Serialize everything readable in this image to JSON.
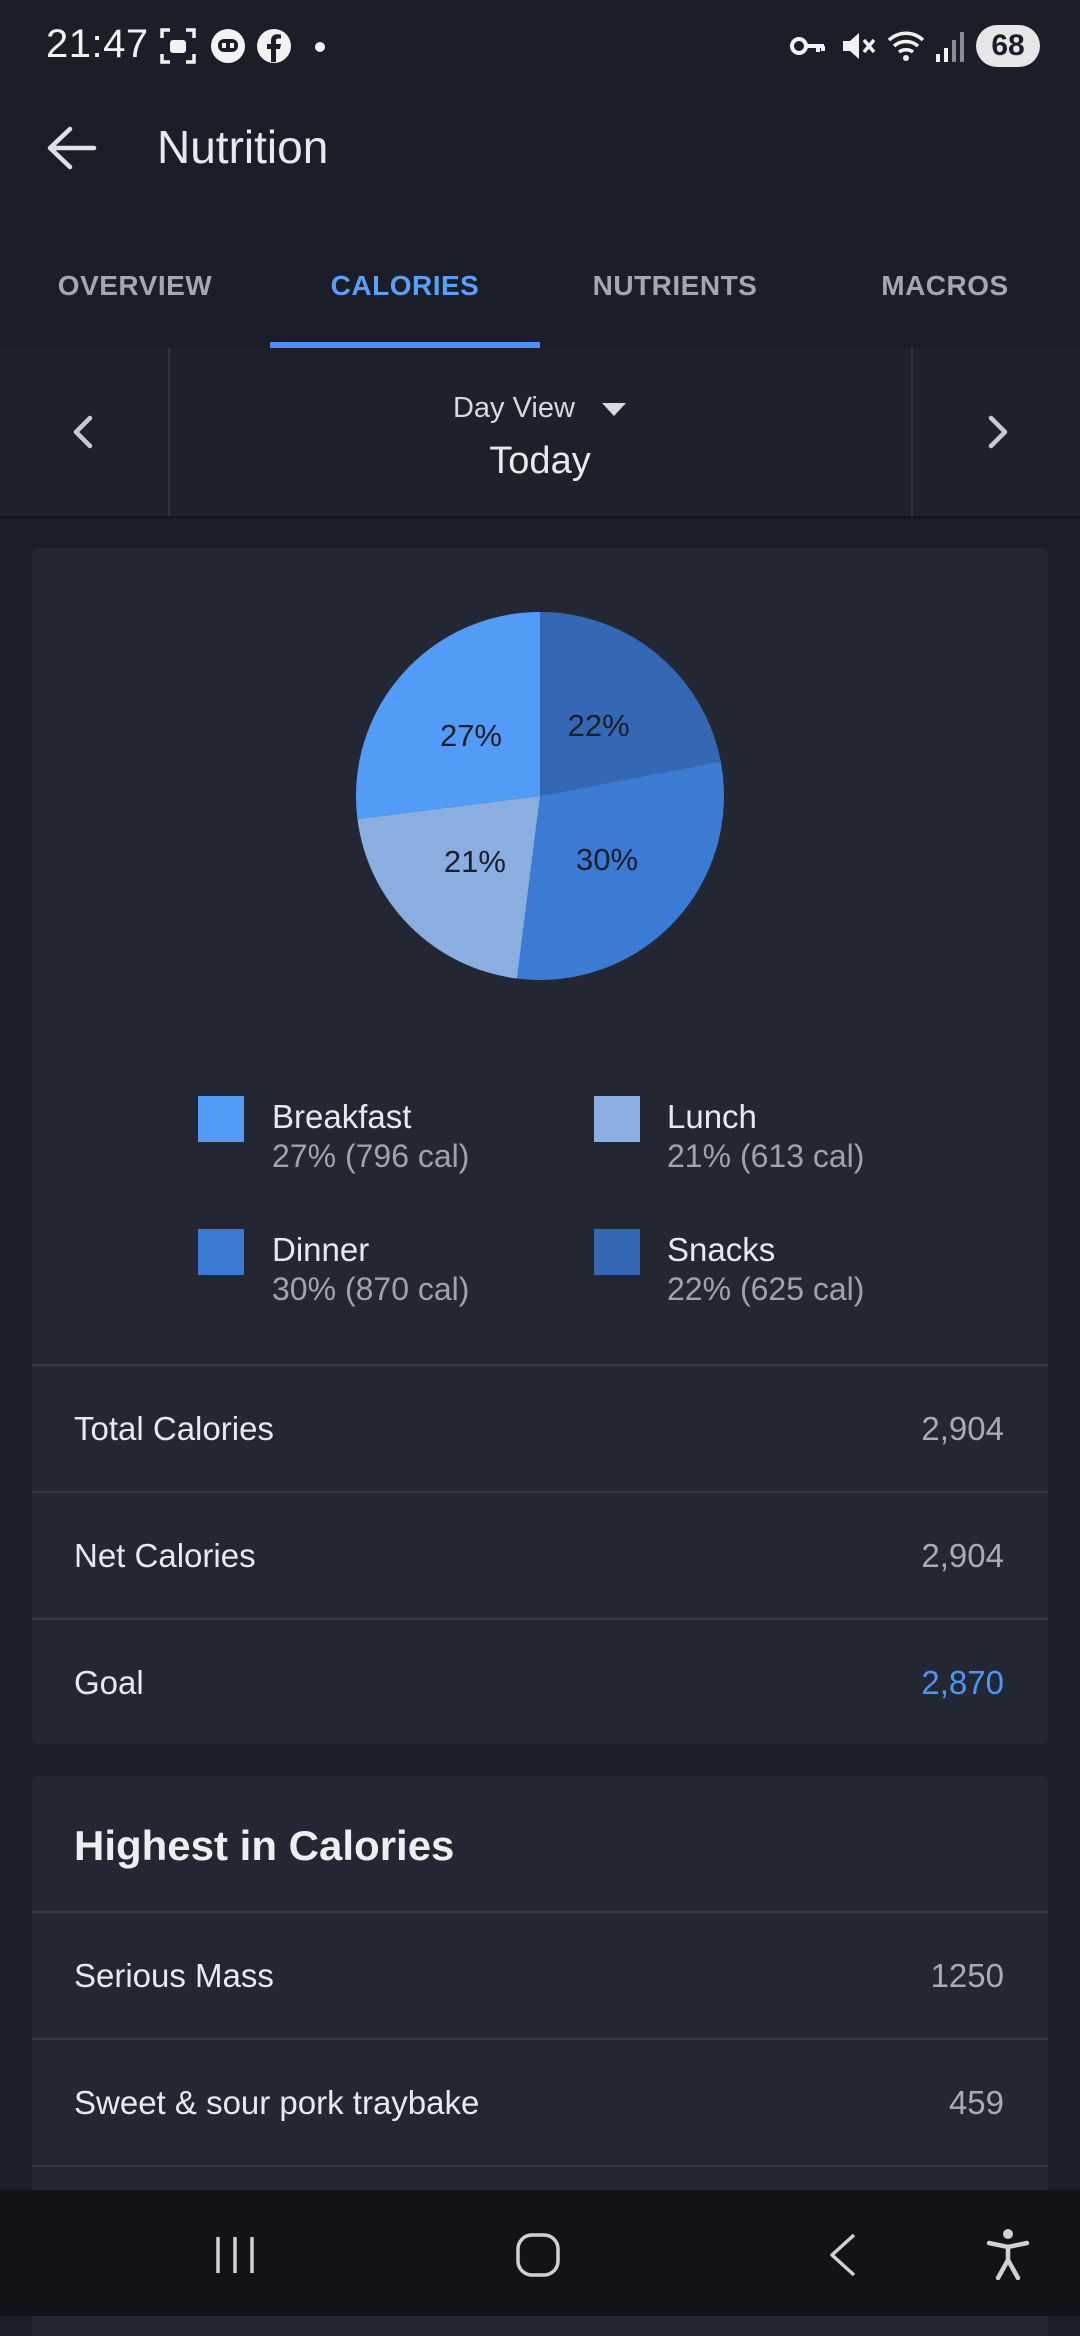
{
  "status_bar": {
    "time": "21:47",
    "battery": "68",
    "left_icons": [
      "screenshot-icon",
      "robot-icon",
      "facebook-icon",
      "dot-icon"
    ],
    "right_icons": [
      "key-icon",
      "mute-icon",
      "wifi-icon",
      "signal-icon"
    ]
  },
  "app_bar": {
    "title": "Nutrition"
  },
  "tabs": [
    {
      "label": "OVERVIEW",
      "active": false
    },
    {
      "label": "CALORIES",
      "active": true
    },
    {
      "label": "NUTRIENTS",
      "active": false
    },
    {
      "label": "MACROS",
      "active": false
    }
  ],
  "date_nav": {
    "view_label": "Day View",
    "date_label": "Today"
  },
  "chart_data": {
    "type": "pie",
    "slices": [
      {
        "name": "Snacks",
        "percent": 22,
        "label": "22%",
        "color": "#3468b4"
      },
      {
        "name": "Dinner",
        "percent": 30,
        "label": "30%",
        "color": "#3b7bd3"
      },
      {
        "name": "Lunch",
        "percent": 21,
        "label": "21%",
        "color": "#8aaee0"
      },
      {
        "name": "Breakfast",
        "percent": 27,
        "label": "27%",
        "color": "#529cf8"
      }
    ]
  },
  "legend": [
    {
      "name": "Breakfast",
      "value": "27% (796 cal)",
      "color": "#529cf8"
    },
    {
      "name": "Lunch",
      "value": "21% (613 cal)",
      "color": "#8aaee0"
    },
    {
      "name": "Dinner",
      "value": "30% (870 cal)",
      "color": "#3b7bd3"
    },
    {
      "name": "Snacks",
      "value": "22% (625 cal)",
      "color": "#3468b4"
    }
  ],
  "summary": [
    {
      "label": "Total Calories",
      "value": "2,904"
    },
    {
      "label": "Net Calories",
      "value": "2,904"
    },
    {
      "label": "Goal",
      "value": "2,870"
    }
  ],
  "highest": {
    "title": "Highest in Calories",
    "items": [
      {
        "label": "Serious Mass",
        "value": "1250"
      },
      {
        "label": "Sweet & sour pork traybake",
        "value": "459"
      }
    ]
  },
  "colors": {
    "accent": "#4f95f5",
    "background": "#1b1e29",
    "card": "#232633"
  }
}
